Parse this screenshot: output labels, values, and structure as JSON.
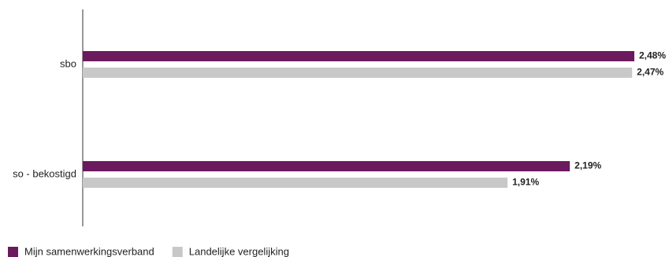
{
  "chart_data": {
    "type": "hbar",
    "categories": [
      "sbo",
      "so - bekostigd"
    ],
    "series": [
      {
        "name": "Mijn samenwerkingsverband",
        "color": "#6b1a5e",
        "values": [
          2.48,
          2.19
        ],
        "value_labels": [
          "2,48%",
          "2,19%"
        ]
      },
      {
        "name": "Landelijke vergelijking",
        "color": "#c8c8c8",
        "values": [
          2.47,
          1.91
        ],
        "value_labels": [
          "2,47%",
          "1,91%"
        ]
      }
    ],
    "legend": "bottom-left"
  }
}
